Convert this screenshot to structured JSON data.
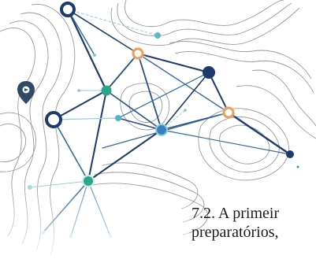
{
  "document": {
    "paragraph_lines": [
      "7.2. A primeir",
      "preparatórios,"
    ]
  },
  "illustration": {
    "name": "network-map-graphic",
    "colors": {
      "contour_line": "#6b6b6b",
      "edge_dark": "#1f3b6b",
      "edge_light": "#8fd0d8",
      "node_teal": "#2aa58a",
      "node_navy": "#1c3a6e",
      "node_orange": "#e8a060",
      "pin": "#2f4a66"
    },
    "icons": [
      "map-pin-icon"
    ]
  }
}
